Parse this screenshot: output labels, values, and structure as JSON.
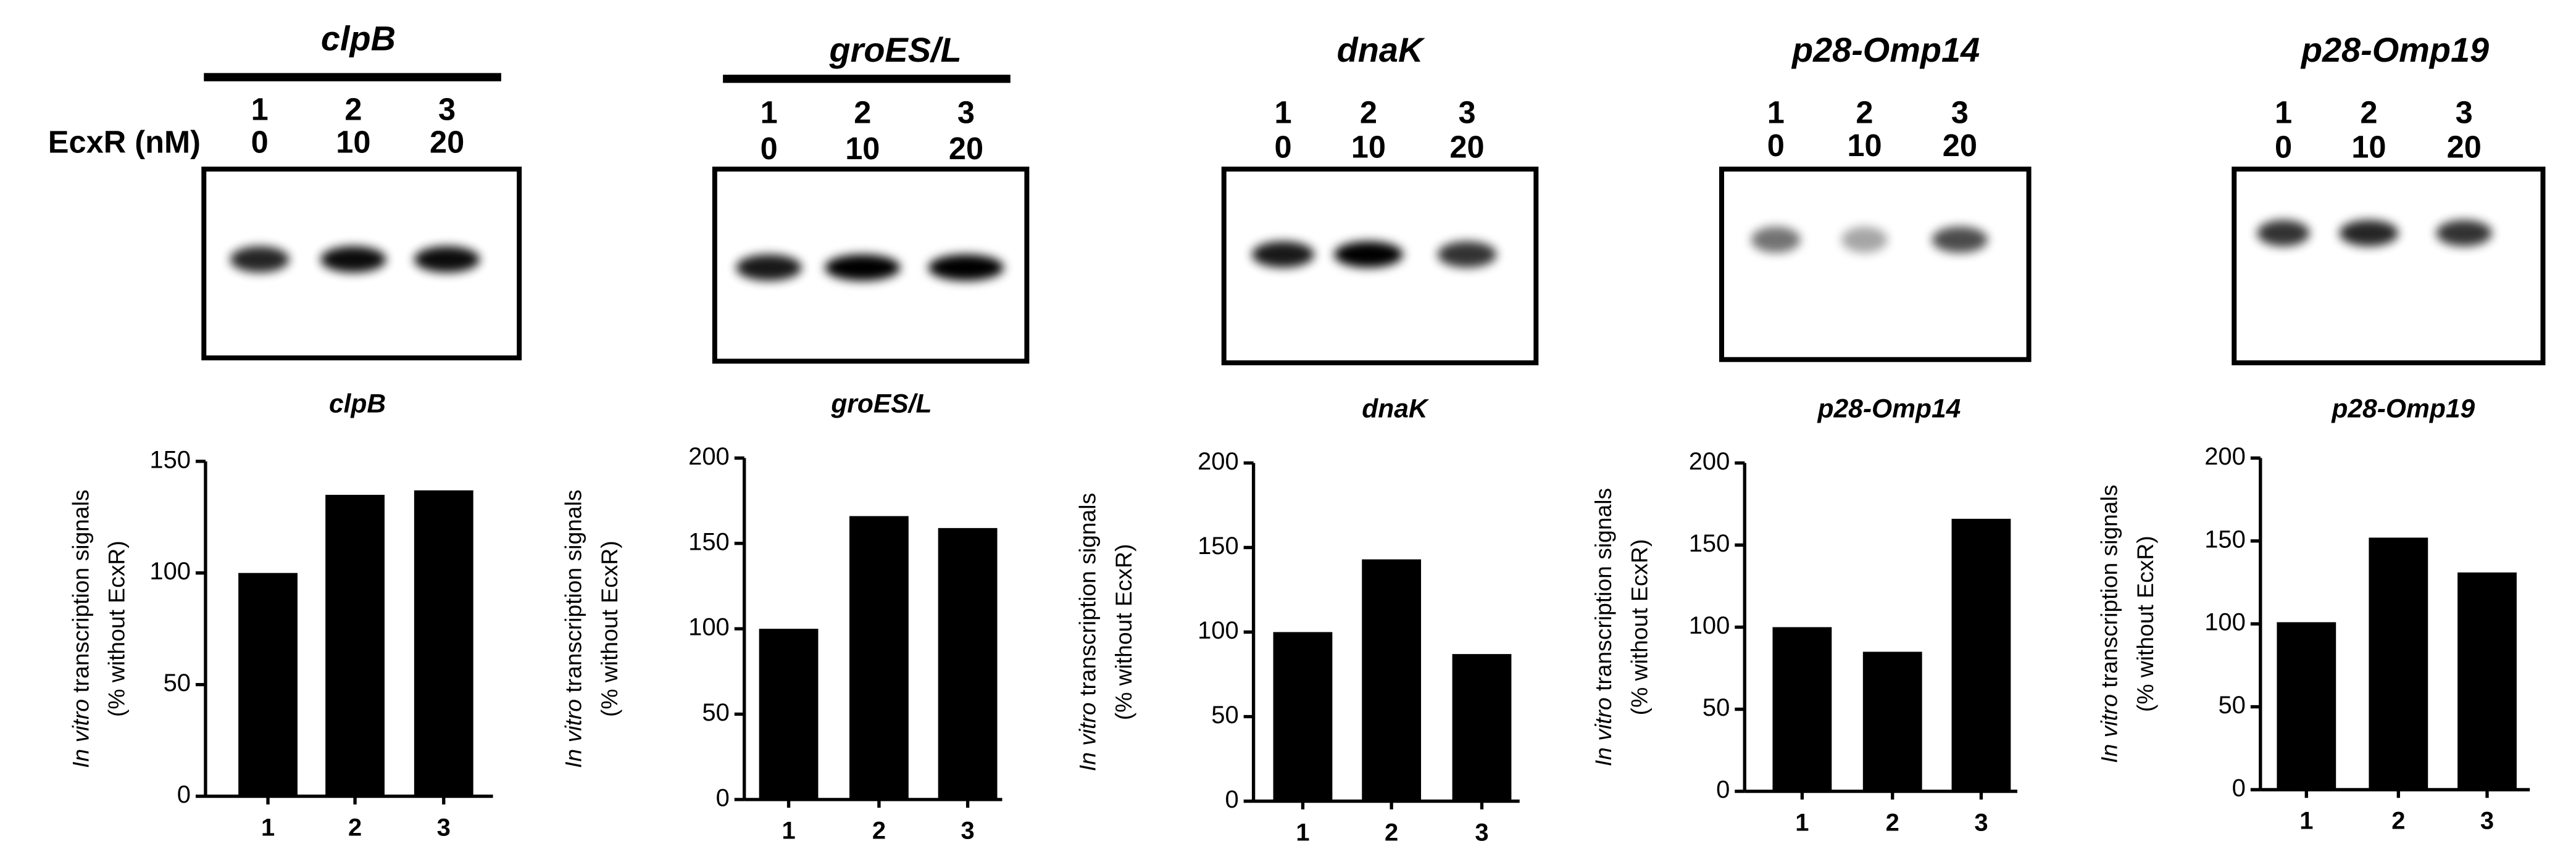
{
  "gels": [
    {
      "title": "clpB",
      "row_label": "EcxR (nM)",
      "lanes": [
        "1",
        "2",
        "3"
      ],
      "concentrations": [
        "0",
        "10",
        "20"
      ]
    },
    {
      "title": "groES/L",
      "lanes": [
        "1",
        "2",
        "3"
      ],
      "concentrations": [
        "0",
        "10",
        "20"
      ]
    },
    {
      "title": "dnaK",
      "lanes": [
        "1",
        "2",
        "3"
      ],
      "concentrations": [
        "0",
        "10",
        "20"
      ]
    },
    {
      "title": "p28-Omp14",
      "lanes": [
        "1",
        "2",
        "3"
      ],
      "concentrations": [
        "0",
        "10",
        "20"
      ]
    },
    {
      "title": "p28-Omp19",
      "lanes": [
        "1",
        "2",
        "3"
      ],
      "concentrations": [
        "0",
        "10",
        "20"
      ]
    }
  ],
  "chart_data": [
    {
      "type": "bar",
      "title": "clpB",
      "y_label_italic": "In vitro",
      "y_label": "transcription signals",
      "y_label_2": "(% without EcxR)",
      "categories": [
        "1",
        "2",
        "3"
      ],
      "values": [
        100,
        135,
        137
      ],
      "color": "#000000",
      "ylim": [
        0,
        150
      ],
      "yticks": [
        0,
        50,
        100,
        150
      ]
    },
    {
      "type": "bar",
      "title": "groES/L",
      "y_label_italic": "In vitro",
      "y_label": "transcription signals",
      "y_label_2": "(% without EcxR)",
      "categories": [
        "1",
        "2",
        "3"
      ],
      "values": [
        100,
        166,
        159
      ],
      "color": "#000000",
      "ylim": [
        0,
        200
      ],
      "yticks": [
        0,
        50,
        100,
        150,
        200
      ]
    },
    {
      "type": "bar",
      "title": "dnaK",
      "y_label_italic": "In vitro",
      "y_label": "transcription signals",
      "y_label_2": "(% without EcxR)",
      "categories": [
        "1",
        "2",
        "3"
      ],
      "values": [
        100,
        143,
        87
      ],
      "color": "#000000",
      "ylim": [
        0,
        200
      ],
      "yticks": [
        0,
        50,
        100,
        150,
        200
      ]
    },
    {
      "type": "bar",
      "title": "p28-Omp14",
      "y_label_italic": "In vitro",
      "y_label": "transcription signals",
      "y_label_2": "(% without EcxR)",
      "categories": [
        "1",
        "2",
        "3"
      ],
      "values": [
        100,
        85,
        166
      ],
      "color": "#000000",
      "ylim": [
        0,
        200
      ],
      "yticks": [
        0,
        50,
        100,
        150,
        200
      ]
    },
    {
      "type": "bar",
      "title": "p28-Omp19",
      "y_label_italic": "In vitro",
      "y_label": "transcription signals",
      "y_label_2": "(% without EcxR)",
      "categories": [
        "1",
        "2",
        "3"
      ],
      "values": [
        101,
        152,
        131
      ],
      "color": "#000000",
      "ylim": [
        0,
        200
      ],
      "yticks": [
        0,
        50,
        100,
        150,
        200
      ]
    }
  ]
}
